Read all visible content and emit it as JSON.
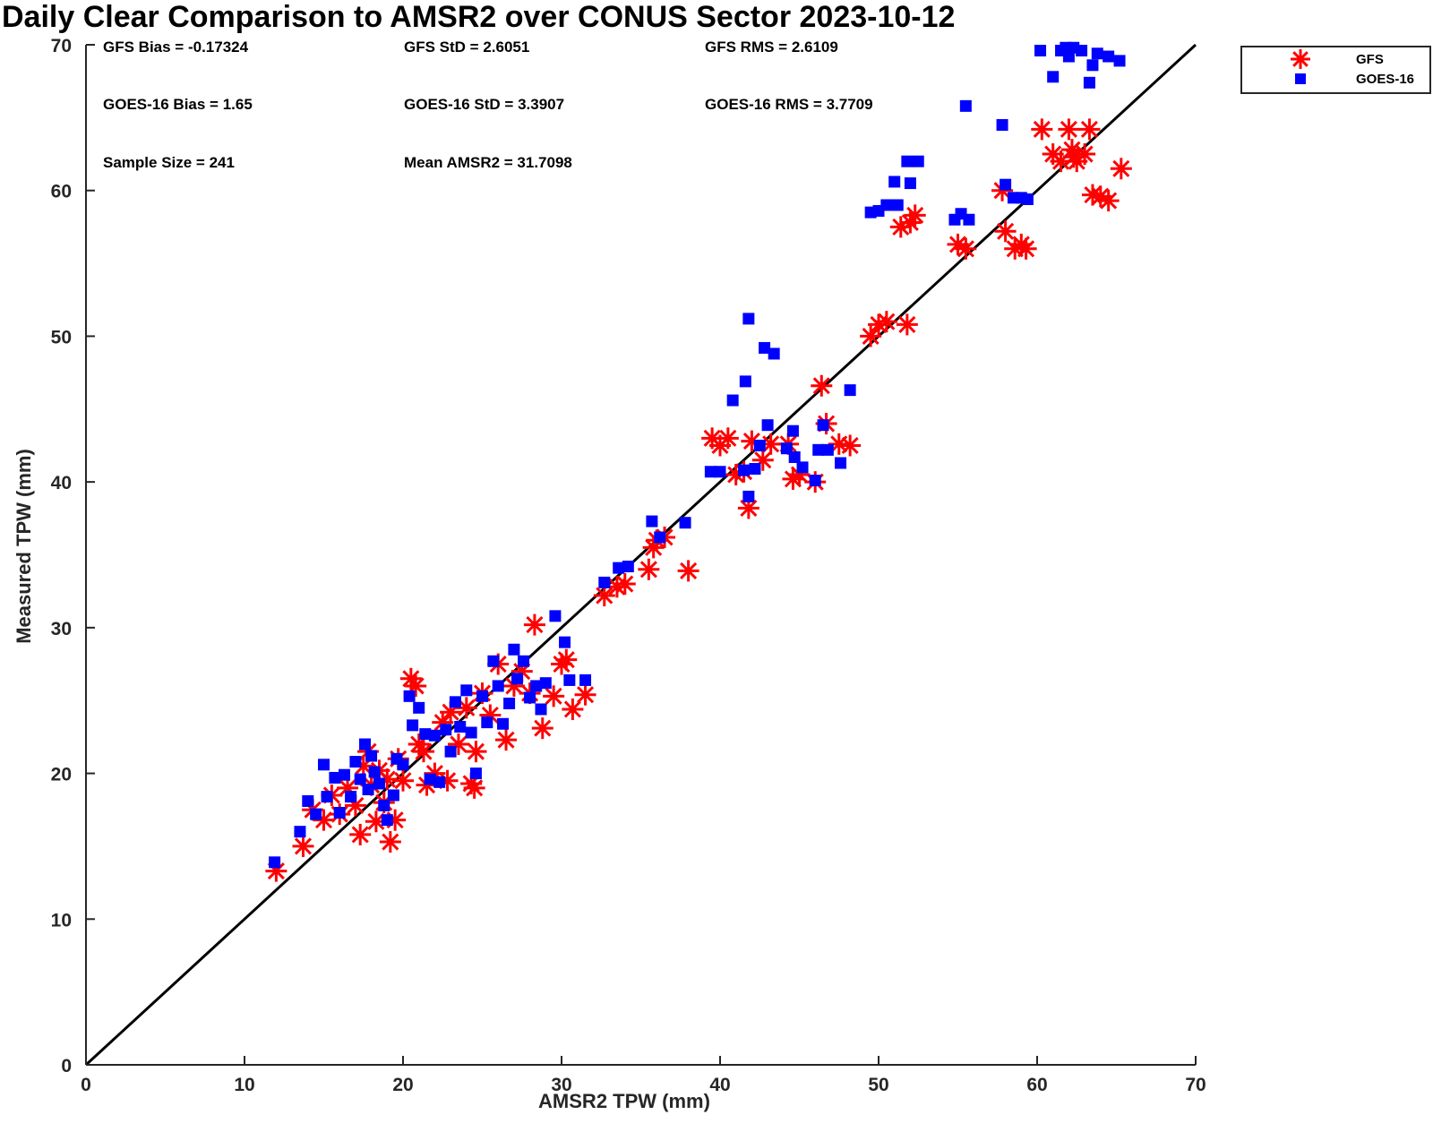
{
  "chart_data": {
    "type": "scatter",
    "title": "Daily Clear Comparison to AMSR2 over CONUS Sector 2023-10-12",
    "xlabel": "AMSR2 TPW (mm)",
    "ylabel": "Measured TPW (mm)",
    "xlim": [
      0,
      70
    ],
    "ylim": [
      0,
      70
    ],
    "xticks": [
      0,
      10,
      20,
      30,
      40,
      50,
      60,
      70
    ],
    "yticks": [
      0,
      10,
      20,
      30,
      40,
      50,
      60,
      70
    ],
    "grid": false,
    "legend_position": "top-right (outside)",
    "reference_line": {
      "x": [
        0,
        70
      ],
      "y": [
        0,
        70
      ],
      "color": "#000000"
    },
    "stats": [
      {
        "label": "GFS Bias = -0.17324",
        "row": 0,
        "col": 0
      },
      {
        "label": "GFS StD = 2.6051",
        "row": 0,
        "col": 1
      },
      {
        "label": "GFS RMS = 2.6109",
        "row": 0,
        "col": 2
      },
      {
        "label": "GOES-16 Bias = 1.65",
        "row": 1,
        "col": 0
      },
      {
        "label": "GOES-16 StD = 3.3907",
        "row": 1,
        "col": 1
      },
      {
        "label": "GOES-16 RMS = 3.7709",
        "row": 1,
        "col": 2
      },
      {
        "label": "Sample Size = 241",
        "row": 2,
        "col": 0
      },
      {
        "label": "Mean AMSR2 = 31.7098",
        "row": 2,
        "col": 1
      }
    ],
    "series": [
      {
        "name": "GFS",
        "marker": "asterisk",
        "color": "#ff0000",
        "points": [
          [
            12,
            13.3
          ],
          [
            13.7,
            15
          ],
          [
            14.3,
            17.5
          ],
          [
            15,
            16.8
          ],
          [
            15.5,
            18.5
          ],
          [
            16,
            17.2
          ],
          [
            16.5,
            19
          ],
          [
            17,
            17.8
          ],
          [
            17.3,
            15.8
          ],
          [
            17.5,
            20.5
          ],
          [
            17.8,
            21.5
          ],
          [
            18,
            19.2
          ],
          [
            18.3,
            16.7
          ],
          [
            18.5,
            20.2
          ],
          [
            18.8,
            18
          ],
          [
            19,
            19.6
          ],
          [
            19.2,
            15.3
          ],
          [
            19.5,
            16.8
          ],
          [
            19.7,
            21
          ],
          [
            20,
            19.5
          ],
          [
            20.5,
            26.5
          ],
          [
            20.8,
            26
          ],
          [
            21,
            22
          ],
          [
            21.3,
            21.5
          ],
          [
            21.5,
            19.2
          ],
          [
            22,
            20
          ],
          [
            22.5,
            23.5
          ],
          [
            22.8,
            19.5
          ],
          [
            23,
            24.2
          ],
          [
            23.5,
            22
          ],
          [
            24,
            24.5
          ],
          [
            24.3,
            19.3
          ],
          [
            24.6,
            21.5
          ],
          [
            24.5,
            19
          ],
          [
            25,
            25.5
          ],
          [
            25.5,
            24
          ],
          [
            26,
            27.5
          ],
          [
            26.5,
            22.3
          ],
          [
            27,
            26
          ],
          [
            27.5,
            27
          ],
          [
            28,
            25.5
          ],
          [
            28.3,
            30.2
          ],
          [
            28.8,
            23.1
          ],
          [
            29.5,
            25.3
          ],
          [
            30,
            27.5
          ],
          [
            30.3,
            27.8
          ],
          [
            30.7,
            24.4
          ],
          [
            31.5,
            25.4
          ],
          [
            32.7,
            32.2
          ],
          [
            33.5,
            32.8
          ],
          [
            34,
            33
          ],
          [
            35.5,
            34
          ],
          [
            35.8,
            35.5
          ],
          [
            36,
            36
          ],
          [
            36.5,
            36.2
          ],
          [
            38,
            33.9
          ],
          [
            39.5,
            43
          ],
          [
            40,
            42.5
          ],
          [
            40.5,
            43
          ],
          [
            41,
            40.5
          ],
          [
            41.5,
            40.7
          ],
          [
            42,
            42.8
          ],
          [
            41.8,
            38.2
          ],
          [
            42.7,
            41.5
          ],
          [
            43.2,
            42.6
          ],
          [
            44.3,
            42.6
          ],
          [
            44.6,
            40.2
          ],
          [
            45,
            40.5
          ],
          [
            46,
            40
          ],
          [
            46.4,
            46.6
          ],
          [
            46.7,
            44
          ],
          [
            47.5,
            42.6
          ],
          [
            48.2,
            42.5
          ],
          [
            49.5,
            50
          ],
          [
            50,
            50.8
          ],
          [
            50.5,
            51
          ],
          [
            51.4,
            57.5
          ],
          [
            51.8,
            50.8
          ],
          [
            52,
            57.8
          ],
          [
            52.3,
            58.3
          ],
          [
            55,
            56.3
          ],
          [
            55.5,
            56
          ],
          [
            57.8,
            60
          ],
          [
            58,
            57.2
          ],
          [
            58.6,
            56
          ],
          [
            59,
            56.3
          ],
          [
            59.3,
            56
          ],
          [
            60.3,
            64.2
          ],
          [
            61,
            62.5
          ],
          [
            61.5,
            62
          ],
          [
            62,
            64.2
          ],
          [
            62.2,
            62.8
          ],
          [
            62.5,
            62
          ],
          [
            63,
            62.5
          ],
          [
            63.3,
            64.2
          ],
          [
            63.5,
            59.7
          ],
          [
            64,
            59.6
          ],
          [
            64.5,
            59.3
          ],
          [
            65.3,
            61.5
          ],
          [
            62.3,
            62.3
          ]
        ]
      },
      {
        "name": "GOES-16",
        "marker": "square",
        "color": "#0000ff",
        "points": [
          [
            11.9,
            13.9
          ],
          [
            13.5,
            16
          ],
          [
            14,
            18.1
          ],
          [
            14.5,
            17.2
          ],
          [
            15,
            20.6
          ],
          [
            15.2,
            18.4
          ],
          [
            15.7,
            19.7
          ],
          [
            16,
            17.3
          ],
          [
            16.3,
            19.9
          ],
          [
            16.7,
            18.4
          ],
          [
            17,
            20.8
          ],
          [
            17.3,
            19.6
          ],
          [
            17.6,
            22
          ],
          [
            17.8,
            18.9
          ],
          [
            18,
            21.2
          ],
          [
            18.2,
            20.1
          ],
          [
            18.5,
            19.3
          ],
          [
            18.8,
            17.8
          ],
          [
            19,
            16.8
          ],
          [
            19.4,
            18.5
          ],
          [
            19.6,
            21
          ],
          [
            20,
            20.6
          ],
          [
            20.4,
            25.3
          ],
          [
            20.6,
            23.3
          ],
          [
            21,
            24.5
          ],
          [
            21.4,
            22.7
          ],
          [
            21.7,
            19.6
          ],
          [
            22,
            22.6
          ],
          [
            22.3,
            19.4
          ],
          [
            22.7,
            23
          ],
          [
            23,
            21.5
          ],
          [
            23.3,
            24.9
          ],
          [
            23.6,
            23.2
          ],
          [
            24,
            25.7
          ],
          [
            24.3,
            22.8
          ],
          [
            24.6,
            20
          ],
          [
            25,
            25.3
          ],
          [
            25.3,
            23.5
          ],
          [
            25.7,
            27.7
          ],
          [
            26,
            26
          ],
          [
            26.3,
            23.4
          ],
          [
            26.7,
            24.8
          ],
          [
            27,
            28.5
          ],
          [
            27.2,
            26.5
          ],
          [
            27.6,
            27.7
          ],
          [
            28,
            25.2
          ],
          [
            28.4,
            26
          ],
          [
            28.7,
            24.4
          ],
          [
            29,
            26.2
          ],
          [
            29.6,
            30.8
          ],
          [
            30.2,
            29
          ],
          [
            30.5,
            26.4
          ],
          [
            31.5,
            26.4
          ],
          [
            32.7,
            33.1
          ],
          [
            33.6,
            34.1
          ],
          [
            34.2,
            34.2
          ],
          [
            35.7,
            37.3
          ],
          [
            36.2,
            36.2
          ],
          [
            37.8,
            37.2
          ],
          [
            39.4,
            40.7
          ],
          [
            40,
            40.7
          ],
          [
            40.8,
            45.6
          ],
          [
            41.5,
            40.8
          ],
          [
            41.6,
            46.9
          ],
          [
            41.8,
            51.2
          ],
          [
            41.8,
            39
          ],
          [
            42.2,
            40.9
          ],
          [
            42.5,
            42.5
          ],
          [
            42.8,
            49.2
          ],
          [
            43,
            43.9
          ],
          [
            43.4,
            48.8
          ],
          [
            44.2,
            42.3
          ],
          [
            44.6,
            43.5
          ],
          [
            44.7,
            41.7
          ],
          [
            45.2,
            41
          ],
          [
            46,
            40.1
          ],
          [
            46.2,
            42.2
          ],
          [
            46.5,
            43.9
          ],
          [
            46.8,
            42.2
          ],
          [
            47.6,
            41.3
          ],
          [
            48.2,
            46.3
          ],
          [
            49.5,
            58.5
          ],
          [
            50,
            58.6
          ],
          [
            50.5,
            59
          ],
          [
            51,
            60.6
          ],
          [
            51.2,
            59
          ],
          [
            51.8,
            62
          ],
          [
            52,
            60.5
          ],
          [
            52.5,
            62
          ],
          [
            54.8,
            58
          ],
          [
            55.2,
            58.4
          ],
          [
            55.5,
            65.8
          ],
          [
            55.7,
            58
          ],
          [
            57.8,
            64.5
          ],
          [
            58,
            60.4
          ],
          [
            58.5,
            59.5
          ],
          [
            59,
            59.5
          ],
          [
            59.4,
            59.4
          ],
          [
            60.2,
            69.6
          ],
          [
            61,
            67.8
          ],
          [
            61.5,
            69.6
          ],
          [
            62,
            69.2
          ],
          [
            62.3,
            69.8
          ],
          [
            62.8,
            69.6
          ],
          [
            63.3,
            67.4
          ],
          [
            63.5,
            68.6
          ],
          [
            63.8,
            69.4
          ],
          [
            64.5,
            69.2
          ],
          [
            65.2,
            68.9
          ],
          [
            61.8,
            69.8
          ]
        ]
      }
    ]
  }
}
